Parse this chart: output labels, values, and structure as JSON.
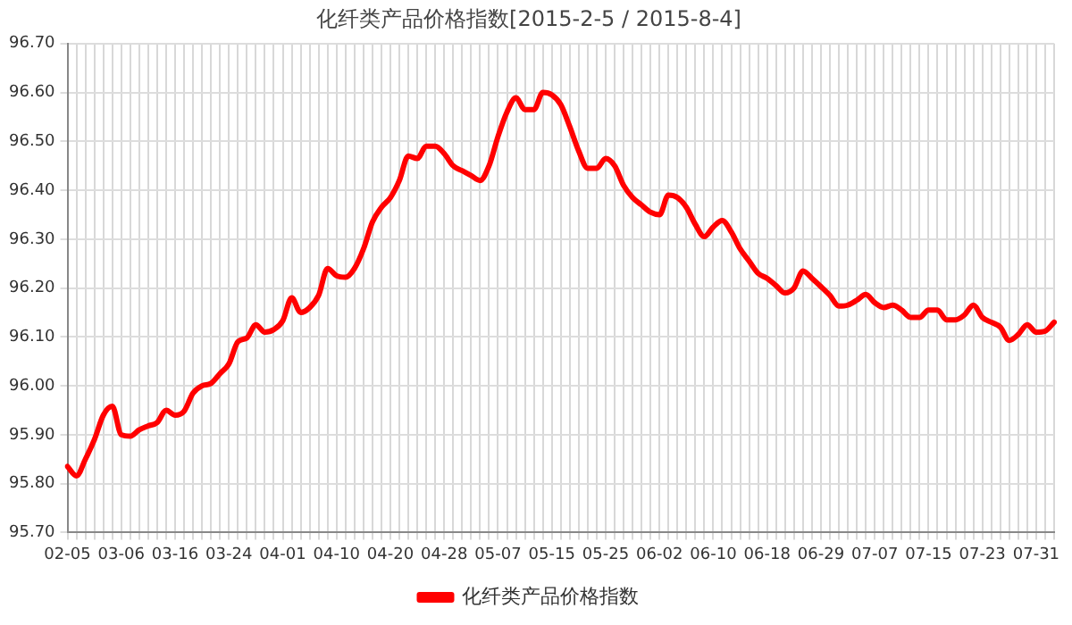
{
  "chart_data": {
    "type": "line",
    "title": "化纤类产品价格指数[2015-2-5 / 2015-8-4]",
    "categories": [
      "02-05",
      null,
      null,
      null,
      null,
      null,
      "03-06",
      null,
      null,
      null,
      null,
      null,
      "03-16",
      null,
      null,
      null,
      null,
      null,
      "03-24",
      null,
      null,
      null,
      null,
      null,
      "04-01",
      null,
      null,
      null,
      null,
      null,
      "04-10",
      null,
      null,
      null,
      null,
      null,
      "04-20",
      null,
      null,
      null,
      null,
      null,
      "04-28",
      null,
      null,
      null,
      null,
      null,
      "05-07",
      null,
      null,
      null,
      null,
      null,
      "05-15",
      null,
      null,
      null,
      null,
      null,
      "05-25",
      null,
      null,
      null,
      null,
      null,
      "06-02",
      null,
      null,
      null,
      null,
      null,
      "06-10",
      null,
      null,
      null,
      null,
      null,
      "06-18",
      null,
      null,
      null,
      null,
      null,
      "06-29",
      null,
      null,
      null,
      null,
      null,
      "07-07",
      null,
      null,
      null,
      null,
      null,
      "07-15",
      null,
      null,
      null,
      null,
      null,
      "07-23",
      null,
      null,
      null,
      null,
      null,
      "07-31",
      null,
      null
    ],
    "series": [
      {
        "name": "化纤类产品价格指数",
        "color": "#ff0000",
        "values": [
          95.835,
          95.816,
          95.85,
          95.89,
          95.94,
          95.958,
          95.9,
          95.897,
          95.91,
          95.918,
          95.925,
          95.95,
          95.94,
          95.948,
          95.985,
          96.0,
          96.005,
          96.025,
          96.045,
          96.09,
          96.098,
          96.125,
          96.11,
          96.115,
          96.133,
          96.18,
          96.15,
          96.16,
          96.185,
          96.24,
          96.225,
          96.222,
          96.24,
          96.28,
          96.335,
          96.365,
          96.385,
          96.42,
          96.47,
          96.465,
          96.49,
          96.49,
          96.475,
          96.45,
          96.44,
          96.43,
          96.42,
          96.45,
          96.51,
          96.56,
          96.589,
          96.565,
          96.565,
          96.6,
          96.595,
          96.575,
          96.53,
          96.48,
          96.445,
          96.445,
          96.465,
          96.45,
          96.41,
          96.385,
          96.37,
          96.355,
          96.35,
          96.39,
          96.385,
          96.365,
          96.33,
          96.305,
          96.325,
          96.338,
          96.315,
          96.28,
          96.255,
          96.23,
          96.22,
          96.205,
          96.19,
          96.2,
          96.235,
          96.22,
          96.203,
          96.185,
          96.163,
          96.165,
          96.175,
          96.187,
          96.17,
          96.16,
          96.165,
          96.155,
          96.14,
          96.14,
          96.155,
          96.155,
          96.135,
          96.135,
          96.145,
          96.165,
          96.14,
          96.13,
          96.12,
          96.093,
          96.105,
          96.125,
          96.11,
          96.112,
          96.13
        ]
      }
    ],
    "ylim": [
      95.7,
      96.7
    ],
    "yticks": [
      {
        "value": 95.7,
        "label": "95.70"
      },
      {
        "value": 95.8,
        "label": "95.80"
      },
      {
        "value": 95.9,
        "label": "95.90"
      },
      {
        "value": 96.0,
        "label": "96.00"
      },
      {
        "value": 96.1,
        "label": "96.10"
      },
      {
        "value": 96.2,
        "label": "96.20"
      },
      {
        "value": 96.3,
        "label": "96.30"
      },
      {
        "value": 96.4,
        "label": "96.40"
      },
      {
        "value": 96.5,
        "label": "96.50"
      },
      {
        "value": 96.6,
        "label": "96.60"
      },
      {
        "value": 96.7,
        "label": "96.70"
      }
    ],
    "grid": true,
    "legend": "bottom",
    "marker": "none",
    "line_style": "solid"
  }
}
